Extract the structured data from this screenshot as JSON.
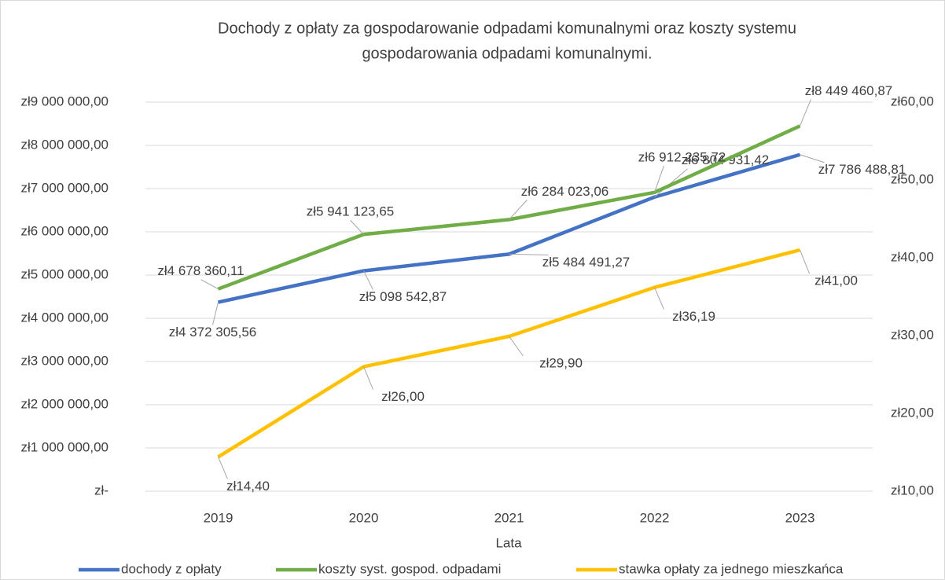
{
  "chart_data": {
    "type": "line",
    "title": [
      "Dochody z opłaty za gospodarowanie odpadami komunalnymi oraz koszty  systemu",
      "gospodarowania odpadami komunalnymi."
    ],
    "x_label": "Lata",
    "categories": [
      "2019",
      "2020",
      "2021",
      "2022",
      "2023"
    ],
    "series": [
      {
        "name": "dochody z opłaty",
        "color": "#4472c4",
        "values": [
          4372305.56,
          5098542.87,
          5484491.27,
          6804931.42,
          7786488.81
        ],
        "value_labels": [
          "zł4 372 305,56",
          "zł5 098 542,87",
          "zł5 484 491,27",
          "zł6 804 931,42",
          "zł7 786 488,81"
        ]
      },
      {
        "name": "koszty syst. gospod. odpadami",
        "color": "#70ad47",
        "values": [
          4678360.11,
          5941123.65,
          6284023.06,
          6912235.72,
          8449460.87
        ],
        "value_labels": [
          "zł4 678 360,11",
          "zł5 941 123,65",
          "zł6 284 023,06",
          "zł6 912 235,72",
          "zł8 449 460,87"
        ]
      },
      {
        "name": "stawka opłaty za jednego mieszkańca",
        "color": "#ffc000",
        "axis": "y2",
        "values": [
          14.4,
          26.0,
          29.9,
          36.19,
          41.0
        ],
        "value_labels": [
          "zł14,40",
          "zł26,00",
          "zł29,90",
          "zł36,19",
          "zł41,00"
        ]
      }
    ],
    "ylim": [
      0,
      9000000
    ],
    "yticks": [
      {
        "value": 0,
        "label": "zł-"
      },
      {
        "value": 1000000,
        "label": "zł1 000 000,00"
      },
      {
        "value": 2000000,
        "label": "zł2 000 000,00"
      },
      {
        "value": 3000000,
        "label": "zł3 000 000,00"
      },
      {
        "value": 4000000,
        "label": "zł4 000 000,00"
      },
      {
        "value": 5000000,
        "label": "zł5 000 000,00"
      },
      {
        "value": 6000000,
        "label": "zł6 000 000,00"
      },
      {
        "value": 7000000,
        "label": "zł7 000 000,00"
      },
      {
        "value": 8000000,
        "label": "zł8 000 000,00"
      },
      {
        "value": 9000000,
        "label": "zł9 000 000,00"
      }
    ],
    "y2lim": [
      10,
      60
    ],
    "y2ticks": [
      {
        "value": 10,
        "label": "zł10,00"
      },
      {
        "value": 20,
        "label": "zł20,00"
      },
      {
        "value": 30,
        "label": "zł30,00"
      },
      {
        "value": 40,
        "label": "zł40,00"
      },
      {
        "value": 50,
        "label": "zł50,00"
      },
      {
        "value": 60,
        "label": "zł60,00"
      }
    ],
    "grid": true,
    "legend": "bottom"
  }
}
